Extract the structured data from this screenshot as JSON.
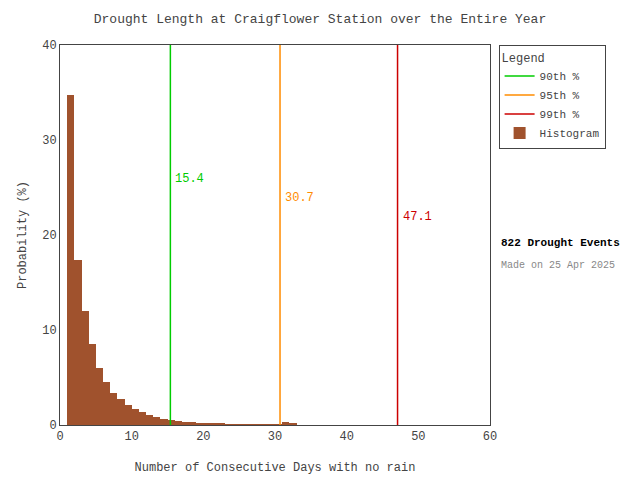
{
  "chart_data": {
    "type": "histogram",
    "title": "Drought Length at Craigflower Station over the Entire Year",
    "xlabel": "Number of Consecutive Days with no rain",
    "ylabel": "Probability (%)",
    "name": "Histogram",
    "color": "#A0522D",
    "bins": [
      1,
      2,
      3,
      4,
      5,
      6,
      7,
      8,
      9,
      10,
      11,
      12,
      13,
      14,
      15,
      16,
      17,
      18,
      19,
      20,
      21,
      22,
      23,
      24,
      25,
      26,
      27,
      28,
      29,
      30,
      31,
      32,
      33,
      34,
      35,
      36,
      37,
      38,
      39,
      40,
      41,
      42,
      43,
      44,
      45,
      46,
      47,
      48,
      49,
      50,
      51,
      52,
      53,
      54,
      55,
      56,
      57,
      58,
      59,
      60,
      61
    ],
    "values": [
      34.7,
      17.4,
      12.0,
      8.5,
      6.0,
      4.5,
      3.4,
      2.7,
      2.1,
      1.7,
      1.35,
      1.05,
      0.82,
      0.65,
      0.52,
      0.41,
      0.33,
      0.27,
      0.22,
      0.18,
      0.15,
      0.12,
      0.1,
      0.085,
      0.07,
      0.058,
      0.048,
      0.04,
      0.033,
      0.027,
      0.3,
      0.12,
      0.0,
      0.0,
      0.0,
      0.0,
      0.0,
      0.0,
      0.0,
      0.0,
      0.0,
      0.0,
      0.0,
      0.0,
      0.0,
      0.0,
      0.0,
      0.0,
      0.0,
      0.0,
      0.0,
      0.0,
      0.0,
      0.0,
      0.0,
      0.0,
      0.0,
      0.0,
      0.0,
      0.0
    ],
    "percentiles": [
      {
        "name": "90th %",
        "x": 15.4,
        "color": "#00CC00"
      },
      {
        "name": "95th %",
        "x": 30.7,
        "color": "#FF8C00"
      },
      {
        "name": "99th %",
        "x": 47.1,
        "color": "#CC0000"
      }
    ],
    "xlim": [
      0,
      60
    ],
    "ylim": [
      0,
      40
    ],
    "xticks": [
      0,
      10,
      20,
      30,
      40,
      50,
      60
    ],
    "yticks": [
      0,
      10,
      20,
      30,
      40
    ],
    "grid": false,
    "legend": "upper right",
    "legend_title": "Legend",
    "annotations": [
      "822 Drought Events",
      "Made on 25 Apr 2025"
    ]
  }
}
